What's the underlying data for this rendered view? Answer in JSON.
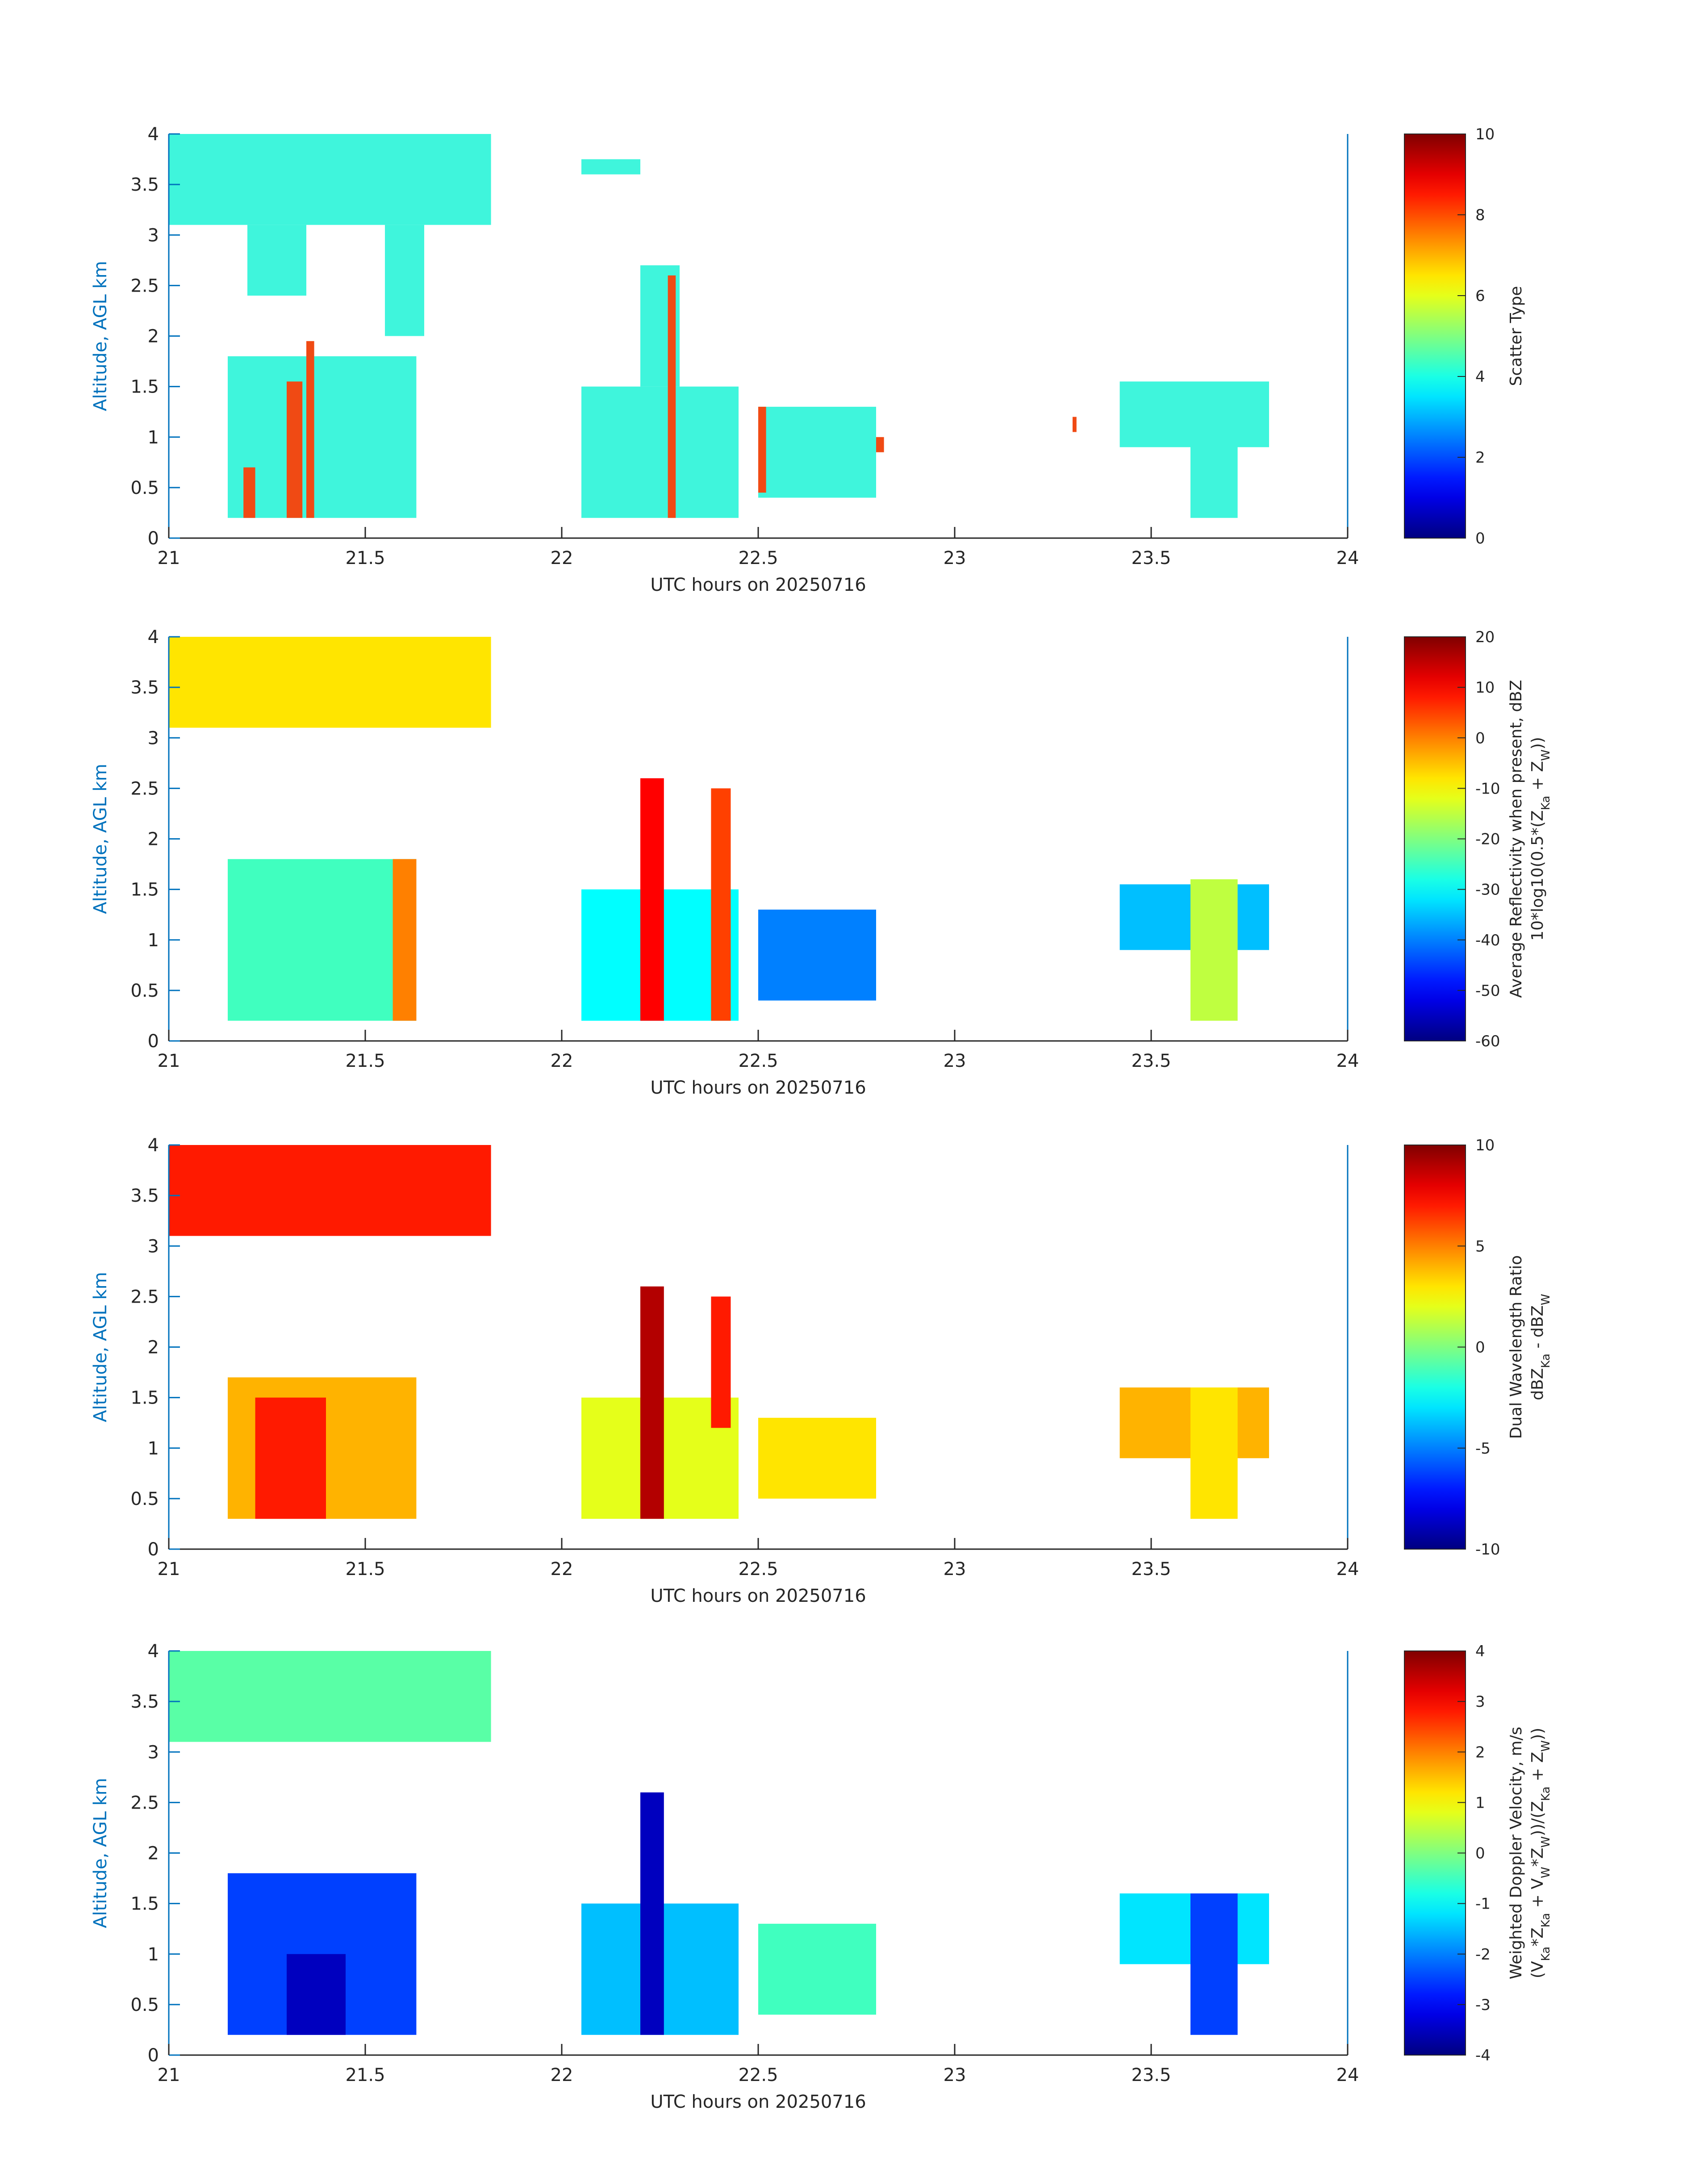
{
  "figure": {
    "xlabel": "UTC hours on 20250716",
    "ylabel": "Altitude, AGL km"
  },
  "colors": {
    "axis_blue": "#0072BD",
    "text_dark": "#262626",
    "category_cyan": "#3ff5dc",
    "category_red": "#f04a14"
  },
  "chart_data": [
    {
      "type": "heatmap",
      "title": "",
      "xlabel": "UTC hours on 20250716",
      "ylabel": "Altitude, AGL km",
      "xlim": [
        21,
        24
      ],
      "ylim": [
        0,
        4
      ],
      "x_ticks": [
        "21",
        "21.5",
        "22",
        "22.5",
        "23",
        "23.5",
        "24"
      ],
      "y_ticks": [
        "0",
        "0.5",
        "1",
        "1.5",
        "2",
        "2.5",
        "3",
        "3.5",
        "4"
      ],
      "colorbar": {
        "label_lines": [
          "Scatter Type"
        ],
        "range": [
          0,
          10
        ],
        "ticks": [
          "0",
          "2",
          "4",
          "6",
          "8",
          "10"
        ]
      },
      "regions": [
        {
          "x0": 21.0,
          "x1": 21.82,
          "y0": 3.1,
          "y1": 4.0,
          "value": 4
        },
        {
          "x0": 21.2,
          "x1": 21.35,
          "y0": 2.4,
          "y1": 3.1,
          "value": 4
        },
        {
          "x0": 21.55,
          "x1": 21.65,
          "y0": 2.0,
          "y1": 3.1,
          "value": 4
        },
        {
          "x0": 21.15,
          "x1": 21.63,
          "y0": 0.2,
          "y1": 1.8,
          "value": 4
        },
        {
          "x0": 22.05,
          "x1": 22.2,
          "y0": 3.6,
          "y1": 3.75,
          "value": 4
        },
        {
          "x0": 22.05,
          "x1": 22.45,
          "y0": 0.2,
          "y1": 1.5,
          "value": 4
        },
        {
          "x0": 22.2,
          "x1": 22.3,
          "y0": 1.5,
          "y1": 2.7,
          "value": 4
        },
        {
          "x0": 22.5,
          "x1": 22.8,
          "y0": 0.4,
          "y1": 1.3,
          "value": 4
        },
        {
          "x0": 23.42,
          "x1": 23.8,
          "y0": 0.9,
          "y1": 1.55,
          "value": 4
        },
        {
          "x0": 23.6,
          "x1": 23.72,
          "y0": 0.2,
          "y1": 1.0,
          "value": 4
        },
        {
          "x0": 21.19,
          "x1": 21.22,
          "y0": 0.2,
          "y1": 0.7,
          "value": 8
        },
        {
          "x0": 21.3,
          "x1": 21.34,
          "y0": 0.2,
          "y1": 1.55,
          "value": 8
        },
        {
          "x0": 21.35,
          "x1": 21.37,
          "y0": 0.2,
          "y1": 1.95,
          "value": 8
        },
        {
          "x0": 22.27,
          "x1": 22.29,
          "y0": 0.2,
          "y1": 2.6,
          "value": 8
        },
        {
          "x0": 22.5,
          "x1": 22.52,
          "y0": 0.45,
          "y1": 1.3,
          "value": 8
        },
        {
          "x0": 22.8,
          "x1": 22.82,
          "y0": 0.85,
          "y1": 1.0,
          "value": 8
        },
        {
          "x0": 23.3,
          "x1": 23.31,
          "y0": 1.05,
          "y1": 1.2,
          "value": 8
        }
      ]
    },
    {
      "type": "heatmap",
      "title": "",
      "xlabel": "UTC hours on 20250716",
      "ylabel": "Altitude, AGL km",
      "xlim": [
        21,
        24
      ],
      "ylim": [
        0,
        4
      ],
      "x_ticks": [
        "21",
        "21.5",
        "22",
        "22.5",
        "23",
        "23.5",
        "24"
      ],
      "y_ticks": [
        "0",
        "0.5",
        "1",
        "1.5",
        "2",
        "2.5",
        "3",
        "3.5",
        "4"
      ],
      "colorbar": {
        "label_lines": [
          "Average Reflectivity when present, dBZ",
          "10*log10(0.5*(Z_Ka + Z_W))"
        ],
        "range": [
          -60,
          20
        ],
        "ticks": [
          "-60",
          "-50",
          "-40",
          "-30",
          "-20",
          "-10",
          "0",
          "10",
          "20"
        ]
      },
      "regions": [
        {
          "x0": 21.0,
          "x1": 21.82,
          "y0": 3.1,
          "y1": 4.0,
          "value": -8
        },
        {
          "x0": 21.15,
          "x1": 21.63,
          "y0": 0.2,
          "y1": 1.8,
          "value": -25
        },
        {
          "x0": 21.57,
          "x1": 21.63,
          "y0": 0.2,
          "y1": 1.8,
          "value": 0
        },
        {
          "x0": 22.05,
          "x1": 22.45,
          "y0": 0.2,
          "y1": 1.5,
          "value": -30
        },
        {
          "x0": 22.2,
          "x1": 22.26,
          "y0": 0.2,
          "y1": 2.6,
          "value": 10
        },
        {
          "x0": 22.38,
          "x1": 22.43,
          "y0": 0.2,
          "y1": 2.5,
          "value": 5
        },
        {
          "x0": 22.5,
          "x1": 22.8,
          "y0": 0.4,
          "y1": 1.3,
          "value": -40
        },
        {
          "x0": 23.42,
          "x1": 23.8,
          "y0": 0.9,
          "y1": 1.55,
          "value": -35
        },
        {
          "x0": 23.6,
          "x1": 23.72,
          "y0": 0.2,
          "y1": 1.6,
          "value": -15
        }
      ]
    },
    {
      "type": "heatmap",
      "title": "",
      "xlabel": "UTC hours on 20250716",
      "ylabel": "Altitude, AGL km",
      "xlim": [
        21,
        24
      ],
      "ylim": [
        0,
        4
      ],
      "x_ticks": [
        "21",
        "21.5",
        "22",
        "22.5",
        "23",
        "23.5",
        "24"
      ],
      "y_ticks": [
        "0",
        "0.5",
        "1",
        "1.5",
        "2",
        "2.5",
        "3",
        "3.5",
        "4"
      ],
      "colorbar": {
        "label_lines": [
          "Dual Wavelength Ratio",
          "dBZ_Ka - dBZ_W"
        ],
        "range": [
          -10,
          10
        ],
        "ticks": [
          "-10",
          "-5",
          "0",
          "5",
          "10"
        ]
      },
      "regions": [
        {
          "x0": 21.0,
          "x1": 21.82,
          "y0": 3.1,
          "y1": 4.0,
          "value": 7
        },
        {
          "x0": 21.15,
          "x1": 21.63,
          "y0": 0.3,
          "y1": 1.7,
          "value": 4
        },
        {
          "x0": 21.22,
          "x1": 21.4,
          "y0": 0.3,
          "y1": 1.5,
          "value": 7
        },
        {
          "x0": 22.05,
          "x1": 22.45,
          "y0": 0.3,
          "y1": 1.5,
          "value": 2
        },
        {
          "x0": 22.2,
          "x1": 22.26,
          "y0": 0.3,
          "y1": 2.6,
          "value": 9
        },
        {
          "x0": 22.38,
          "x1": 22.43,
          "y0": 1.2,
          "y1": 2.5,
          "value": 7
        },
        {
          "x0": 22.5,
          "x1": 22.8,
          "y0": 0.5,
          "y1": 1.3,
          "value": 3
        },
        {
          "x0": 23.42,
          "x1": 23.8,
          "y0": 0.9,
          "y1": 1.6,
          "value": 4
        },
        {
          "x0": 23.6,
          "x1": 23.72,
          "y0": 0.3,
          "y1": 1.6,
          "value": 3
        }
      ]
    },
    {
      "type": "heatmap",
      "title": "",
      "xlabel": "UTC hours on 20250716",
      "ylabel": "Altitude, AGL km",
      "xlim": [
        21,
        24
      ],
      "ylim": [
        0,
        4
      ],
      "x_ticks": [
        "21",
        "21.5",
        "22",
        "22.5",
        "23",
        "23.5",
        "24"
      ],
      "y_ticks": [
        "0",
        "0.5",
        "1",
        "1.5",
        "2",
        "2.5",
        "3",
        "3.5",
        "4"
      ],
      "colorbar": {
        "label_lines": [
          "Weighted Doppler Velocity, m/s",
          "(V_Ka*Z_Ka + V_W*Z_W))/(Z_Ka + Z_W))"
        ],
        "range": [
          -4,
          4
        ],
        "ticks": [
          "-4",
          "-3",
          "-2",
          "-1",
          "0",
          "1",
          "2",
          "3",
          "4"
        ]
      },
      "regions": [
        {
          "x0": 21.0,
          "x1": 21.82,
          "y0": 3.1,
          "y1": 4.0,
          "value": -0.3
        },
        {
          "x0": 21.15,
          "x1": 21.63,
          "y0": 0.2,
          "y1": 1.8,
          "value": -2.5
        },
        {
          "x0": 21.3,
          "x1": 21.45,
          "y0": 0.2,
          "y1": 1.0,
          "value": -3.5
        },
        {
          "x0": 22.05,
          "x1": 22.45,
          "y0": 0.2,
          "y1": 1.5,
          "value": -1.5
        },
        {
          "x0": 22.2,
          "x1": 22.26,
          "y0": 0.2,
          "y1": 2.6,
          "value": -3.5
        },
        {
          "x0": 22.5,
          "x1": 22.8,
          "y0": 0.4,
          "y1": 1.3,
          "value": -0.5
        },
        {
          "x0": 23.42,
          "x1": 23.8,
          "y0": 0.9,
          "y1": 1.6,
          "value": -1.2
        },
        {
          "x0": 23.6,
          "x1": 23.72,
          "y0": 0.2,
          "y1": 1.6,
          "value": -2.5
        }
      ]
    }
  ]
}
